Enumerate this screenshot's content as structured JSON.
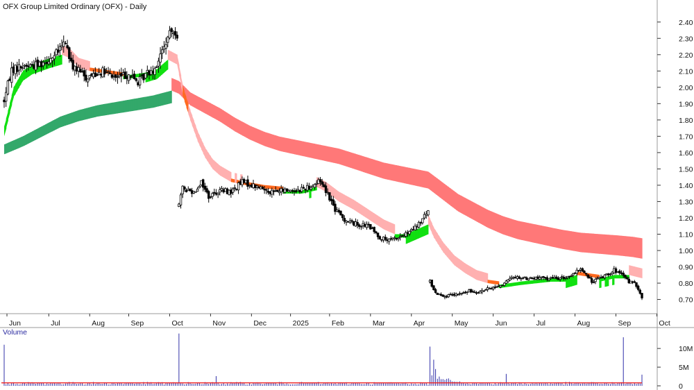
{
  "chart_data": [
    {
      "type": "candlestick",
      "title": "OFX Group Limited Ordinary (OFX) - Daily",
      "ylim": [
        0.63,
        2.45
      ],
      "yticks": [
        "2.40",
        "2.30",
        "2.20",
        "2.10",
        "2.00",
        "1.90",
        "1.80",
        "1.70",
        "1.60",
        "1.50",
        "1.40",
        "1.30",
        "1.20",
        "1.10",
        "1.00",
        "0.90",
        "0.80",
        "0.70"
      ],
      "months": [
        {
          "label": "Jun",
          "x": 1.5
        },
        {
          "label": "Jul",
          "x": 24
        },
        {
          "label": "Aug",
          "x": 46
        },
        {
          "label": "Sep",
          "x": 67
        },
        {
          "label": "Oct",
          "x": 89
        },
        {
          "label": "Nov",
          "x": 111
        },
        {
          "label": "Dec",
          "x": 133
        },
        {
          "label": "2025",
          "x": 154
        },
        {
          "label": "Feb",
          "x": 175
        },
        {
          "label": "Mar",
          "x": 197
        },
        {
          "label": "Apr",
          "x": 219
        },
        {
          "label": "May",
          "x": 241
        },
        {
          "label": "Jun",
          "x": 263
        },
        {
          "label": "Jul",
          "x": 285
        },
        {
          "label": "Aug",
          "x": 307
        },
        {
          "label": "Sep",
          "x": 329
        },
        {
          "label": "Oct",
          "x": 351
        }
      ],
      "price_anchors": [
        [
          0,
          1.92
        ],
        [
          4,
          2.11
        ],
        [
          10,
          2.13
        ],
        [
          18,
          2.14
        ],
        [
          27,
          2.19
        ],
        [
          33,
          2.28
        ],
        [
          36,
          2.14
        ],
        [
          44,
          2.06
        ],
        [
          52,
          2.1
        ],
        [
          60,
          2.06
        ],
        [
          67,
          2.08
        ],
        [
          72,
          2.03
        ],
        [
          77,
          2.09
        ],
        [
          81,
          2.12
        ],
        [
          85,
          2.22
        ],
        [
          88,
          2.3
        ],
        [
          91,
          2.36
        ],
        [
          93,
          2.32
        ],
        [
          94,
          1.28
        ],
        [
          96,
          1.38
        ],
        [
          102,
          1.36
        ],
        [
          106,
          1.42
        ],
        [
          110,
          1.33
        ],
        [
          116,
          1.37
        ],
        [
          122,
          1.36
        ],
        [
          128,
          1.42
        ],
        [
          136,
          1.39
        ],
        [
          144,
          1.36
        ],
        [
          152,
          1.37
        ],
        [
          158,
          1.37
        ],
        [
          166,
          1.4
        ],
        [
          170,
          1.43
        ],
        [
          174,
          1.35
        ],
        [
          178,
          1.25
        ],
        [
          183,
          1.19
        ],
        [
          190,
          1.16
        ],
        [
          196,
          1.15
        ],
        [
          202,
          1.08
        ],
        [
          207,
          1.06
        ],
        [
          212,
          1.08
        ],
        [
          218,
          1.11
        ],
        [
          223,
          1.16
        ],
        [
          226,
          1.21
        ],
        [
          228,
          1.24
        ],
        [
          229,
          0.81
        ],
        [
          232,
          0.74
        ],
        [
          238,
          0.72
        ],
        [
          244,
          0.73
        ],
        [
          250,
          0.75
        ],
        [
          256,
          0.75
        ],
        [
          262,
          0.77
        ],
        [
          268,
          0.79
        ],
        [
          274,
          0.84
        ],
        [
          280,
          0.83
        ],
        [
          290,
          0.83
        ],
        [
          300,
          0.83
        ],
        [
          306,
          0.85
        ],
        [
          310,
          0.89
        ],
        [
          316,
          0.81
        ],
        [
          322,
          0.84
        ],
        [
          328,
          0.88
        ],
        [
          332,
          0.85
        ],
        [
          336,
          0.81
        ],
        [
          339,
          0.8
        ],
        [
          343,
          0.71
        ]
      ],
      "ma_fast_anchors": [
        [
          0,
          1.76
        ],
        [
          5,
          2.0
        ],
        [
          10,
          2.1
        ],
        [
          15,
          2.14
        ],
        [
          20,
          2.16
        ],
        [
          25,
          2.18
        ],
        [
          31,
          2.2
        ],
        [
          35,
          2.18
        ],
        [
          40,
          2.12
        ],
        [
          46,
          2.1
        ],
        [
          52,
          2.09
        ],
        [
          58,
          2.08
        ],
        [
          64,
          2.07
        ],
        [
          70,
          2.08
        ],
        [
          76,
          2.09
        ],
        [
          82,
          2.11
        ],
        [
          88,
          2.17
        ],
        [
          93,
          2.14
        ],
        [
          96,
          1.95
        ],
        [
          100,
          1.8
        ],
        [
          104,
          1.67
        ],
        [
          108,
          1.57
        ],
        [
          112,
          1.5
        ],
        [
          116,
          1.46
        ],
        [
          122,
          1.42
        ],
        [
          130,
          1.4
        ],
        [
          140,
          1.38
        ],
        [
          150,
          1.37
        ],
        [
          160,
          1.37
        ],
        [
          168,
          1.39
        ],
        [
          173,
          1.36
        ],
        [
          180,
          1.3
        ],
        [
          188,
          1.25
        ],
        [
          196,
          1.19
        ],
        [
          204,
          1.13
        ],
        [
          210,
          1.1
        ],
        [
          216,
          1.1
        ],
        [
          222,
          1.13
        ],
        [
          228,
          1.16
        ],
        [
          231,
          1.08
        ],
        [
          236,
          0.99
        ],
        [
          242,
          0.91
        ],
        [
          248,
          0.86
        ],
        [
          254,
          0.82
        ],
        [
          260,
          0.8
        ],
        [
          266,
          0.79
        ],
        [
          272,
          0.8
        ],
        [
          278,
          0.81
        ],
        [
          286,
          0.82
        ],
        [
          294,
          0.83
        ],
        [
          302,
          0.83
        ],
        [
          308,
          0.85
        ],
        [
          314,
          0.84
        ],
        [
          320,
          0.83
        ],
        [
          328,
          0.85
        ],
        [
          336,
          0.85
        ],
        [
          343,
          0.83
        ]
      ],
      "ma_fast_width": 0.06,
      "ma_slow_anchors": [
        [
          0,
          1.65
        ],
        [
          10,
          1.7
        ],
        [
          20,
          1.76
        ],
        [
          30,
          1.82
        ],
        [
          40,
          1.86
        ],
        [
          50,
          1.89
        ],
        [
          60,
          1.91
        ],
        [
          70,
          1.93
        ],
        [
          80,
          1.95
        ],
        [
          90,
          1.98
        ],
        [
          94,
          1.96
        ],
        [
          100,
          1.89
        ],
        [
          108,
          1.84
        ],
        [
          116,
          1.79
        ],
        [
          124,
          1.73
        ],
        [
          132,
          1.68
        ],
        [
          140,
          1.64
        ],
        [
          148,
          1.61
        ],
        [
          156,
          1.59
        ],
        [
          164,
          1.57
        ],
        [
          172,
          1.55
        ],
        [
          180,
          1.53
        ],
        [
          188,
          1.5
        ],
        [
          196,
          1.47
        ],
        [
          204,
          1.44
        ],
        [
          212,
          1.42
        ],
        [
          220,
          1.4
        ],
        [
          228,
          1.38
        ],
        [
          236,
          1.31
        ],
        [
          244,
          1.24
        ],
        [
          252,
          1.19
        ],
        [
          260,
          1.14
        ],
        [
          268,
          1.1
        ],
        [
          276,
          1.07
        ],
        [
          284,
          1.05
        ],
        [
          292,
          1.03
        ],
        [
          300,
          1.01
        ],
        [
          310,
          0.99
        ],
        [
          320,
          0.98
        ],
        [
          330,
          0.97
        ],
        [
          338,
          0.96
        ],
        [
          343,
          0.95
        ]
      ],
      "ma_slow_width_start": 0.06,
      "ma_slow_width_end": 0.125,
      "last_index": 343,
      "colors": {
        "fast_bull": "#11e011",
        "slow_bull": "#33a86a",
        "fast_bear": "#ffb0b0",
        "slow_bear": "#ff7878",
        "cross": "#ff6a20",
        "axis": "#999999",
        "candle": "#000000"
      }
    },
    {
      "type": "bar",
      "title": "Volume",
      "ylim": [
        0,
        13000000
      ],
      "yticks": [
        "10M",
        "5M",
        "0"
      ],
      "ma_level": 800000,
      "spikes": [
        [
          0,
          11000000
        ],
        [
          94,
          14000000
        ],
        [
          114,
          2600000
        ],
        [
          229,
          10500000
        ],
        [
          231,
          7000000
        ],
        [
          232,
          4500000
        ],
        [
          270,
          3200000
        ],
        [
          333,
          13000000
        ],
        [
          343,
          3000000
        ]
      ],
      "colors": {
        "bar": "#3030a8",
        "ma": "#ee2222"
      }
    }
  ]
}
